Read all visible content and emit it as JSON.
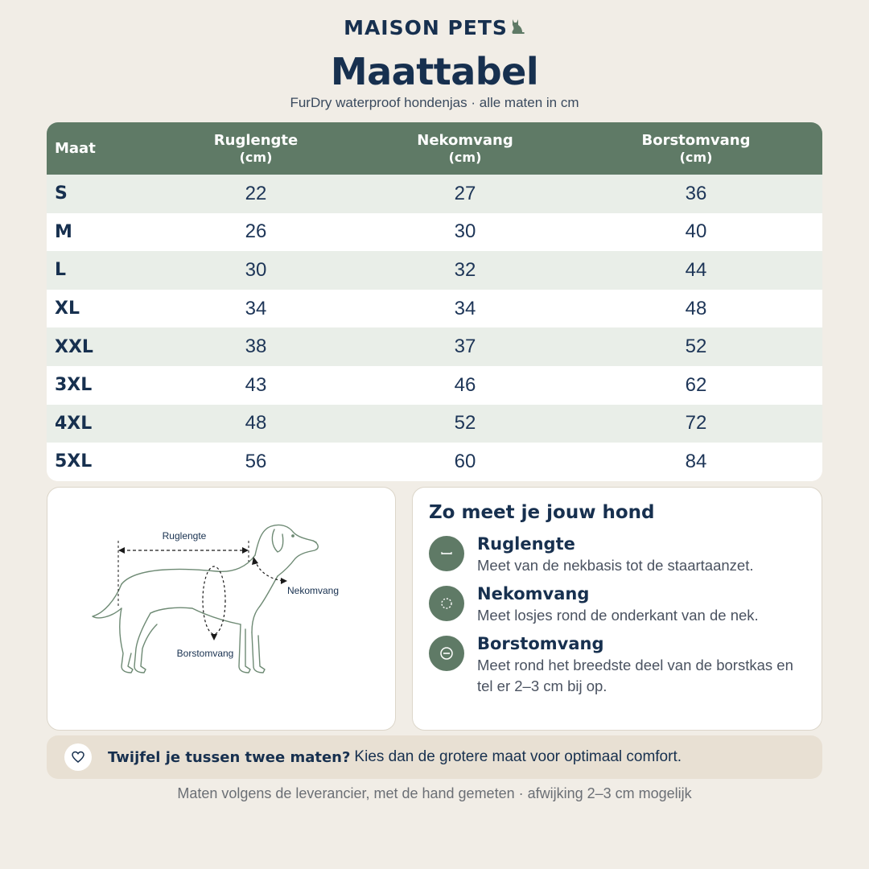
{
  "brand": {
    "name": "MAISON PETS",
    "icon": "cat-icon"
  },
  "page": {
    "title": "Maattabel",
    "subtitle": "FurDry waterproof hondenjas · alle maten in cm"
  },
  "table": {
    "headers": [
      {
        "label": "Maat",
        "unit": ""
      },
      {
        "label": "Ruglengte",
        "unit": "(cm)"
      },
      {
        "label": "Nekomvang",
        "unit": "(cm)"
      },
      {
        "label": "Borstomvang",
        "unit": "(cm)"
      }
    ],
    "rows": [
      [
        "S",
        "22",
        "27",
        "36"
      ],
      [
        "M",
        "26",
        "30",
        "40"
      ],
      [
        "L",
        "30",
        "32",
        "44"
      ],
      [
        "XL",
        "34",
        "34",
        "48"
      ],
      [
        "XXL",
        "38",
        "37",
        "52"
      ],
      [
        "3XL",
        "43",
        "46",
        "62"
      ],
      [
        "4XL",
        "48",
        "52",
        "72"
      ],
      [
        "5XL",
        "56",
        "60",
        "84"
      ]
    ]
  },
  "diagram": {
    "label_back": "Ruglengte",
    "label_neck": "Nekomvang",
    "label_chest": "Borstomvang"
  },
  "measure": {
    "title": "Zo meet je jouw hond",
    "items": [
      {
        "name": "Ruglengte",
        "desc": "Meet van de nekbasis tot de staartaanzet.",
        "icon": "line-icon"
      },
      {
        "name": "Nekomvang",
        "desc": "Meet losjes rond de onderkant van de nek.",
        "icon": "dotted-circle-icon"
      },
      {
        "name": "Borstomvang",
        "desc": "Meet rond het breedste deel van de borstkas en tel er 2–3 cm bij op.",
        "icon": "circle-minus-icon"
      }
    ]
  },
  "tip": {
    "bold": "Twijfel je tussen twee maten?",
    "text": "Kies dan de grotere maat voor optimaal comfort.",
    "icon": "heart-icon"
  },
  "footer": "Maten volgens de leverancier, met de hand gemeten · afwijking 2–3 cm mogelijk",
  "colors": {
    "accent": "#5f7a66",
    "navy": "#17304f",
    "background": "#f1ede6",
    "row_alt": "#e9eee8"
  }
}
